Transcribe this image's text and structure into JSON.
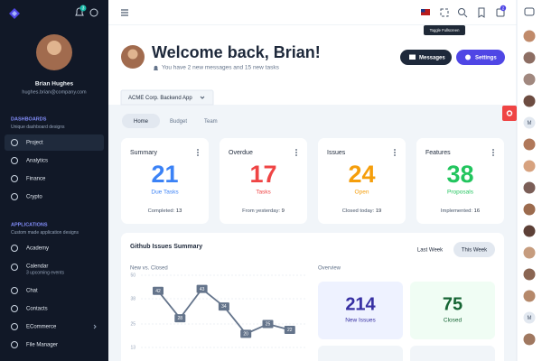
{
  "sidebar": {
    "notifications": 3,
    "user": {
      "name": "Brian Hughes",
      "email": "hughes.brian@company.com"
    },
    "sections": [
      {
        "title": "DASHBOARDS",
        "subtitle": "Unique dashboard designs",
        "items": [
          {
            "label": "Project",
            "active": true
          },
          {
            "label": "Analytics"
          },
          {
            "label": "Finance"
          },
          {
            "label": "Crypto"
          }
        ]
      },
      {
        "title": "APPLICATIONS",
        "subtitle": "Custom made application designs",
        "items": [
          {
            "label": "Academy"
          },
          {
            "label": "Calendar",
            "caption": "3 upcoming events"
          },
          {
            "label": "Chat"
          },
          {
            "label": "Contacts"
          },
          {
            "label": "ECommerce",
            "has_children": true
          },
          {
            "label": "File Manager"
          }
        ]
      }
    ]
  },
  "topbar": {
    "tooltip": "Toggle Fullscreen",
    "mail_count": 2
  },
  "header": {
    "greeting": "Welcome back, Brian!",
    "subtitle": "You have 2 new messages and 15 new tasks",
    "buttons": [
      "Messages",
      "Settings"
    ]
  },
  "project_selector": "ACME Corp. Backend App",
  "tabs": {
    "items": [
      "Home",
      "Budget",
      "Team"
    ],
    "active": 0
  },
  "cards": [
    {
      "title": "Summary",
      "value": 21,
      "label": "Due Tasks",
      "footer": "Completed:",
      "footer_value": 13,
      "color": "#3b82f6"
    },
    {
      "title": "Overdue",
      "value": 17,
      "label": "Tasks",
      "footer": "From yesterday:",
      "footer_value": 9,
      "color": "#ef4444"
    },
    {
      "title": "Issues",
      "value": 24,
      "label": "Open",
      "footer": "Closed today:",
      "footer_value": 19,
      "color": "#f59e0b"
    },
    {
      "title": "Features",
      "value": 38,
      "label": "Proposals",
      "footer": "Implemented:",
      "footer_value": 16,
      "color": "#22c55e"
    }
  ],
  "github": {
    "title": "Github Issues Summary",
    "toggle": [
      "Last Week",
      "This Week"
    ],
    "active": 1,
    "chart": {
      "type": "line",
      "title": "New vs. Closed",
      "values": [
        42,
        28,
        43,
        34,
        20,
        25,
        22
      ],
      "color": "#64748b",
      "ylim": [
        13,
        50
      ],
      "yticks": [
        13,
        25,
        38,
        50
      ]
    },
    "overview": {
      "title": "Overview",
      "tiles": [
        {
          "value": 214,
          "label": "New Issues",
          "bg": "#eef2ff",
          "color": "#3730a3"
        },
        {
          "value": 75,
          "label": "Closed",
          "bg": "#f0fdf4",
          "color": "#166534"
        }
      ]
    }
  },
  "rightbar": {
    "initials": [
      "M",
      "M"
    ]
  }
}
